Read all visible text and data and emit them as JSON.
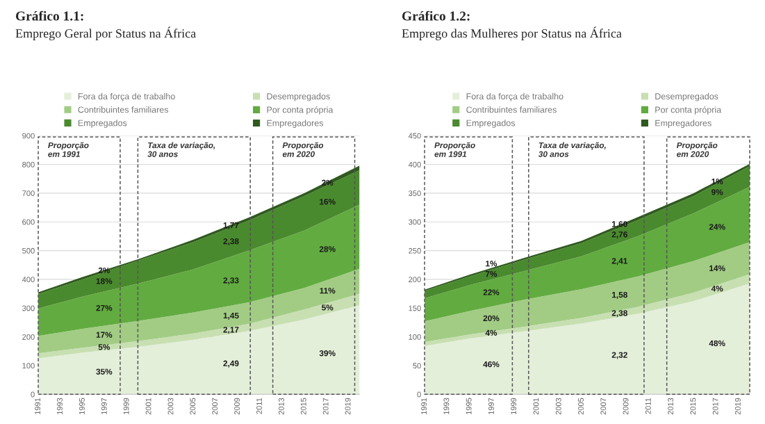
{
  "chart_data": [
    {
      "type": "area",
      "title": "Gráfico 1.1:",
      "subtitle": "Emprego Geral por Status na África",
      "stacked": true,
      "legend": "top",
      "grid": "y",
      "x": [
        1991,
        1995,
        2000,
        2005,
        2010,
        2015,
        2020
      ],
      "xlim": [
        1991,
        2020
      ],
      "xticks": [
        1991,
        1993,
        1995,
        1997,
        1999,
        2001,
        2003,
        2005,
        2007,
        2009,
        2011,
        2013,
        2015,
        2017,
        2019
      ],
      "ylim": [
        0,
        900
      ],
      "yticks": [
        0,
        100,
        200,
        300,
        400,
        500,
        600,
        700,
        800,
        900
      ],
      "series": [
        {
          "name": "Fora da força de trabalho",
          "color": "#e4efda",
          "values": [
            125,
            145,
            165,
            190,
            220,
            260,
            310
          ]
        },
        {
          "name": "Desempregados",
          "color": "#c8dfb2",
          "values": [
            18,
            17,
            20,
            22,
            25,
            35,
            40
          ]
        },
        {
          "name": "Contribuintes familiares",
          "color": "#a2cc84",
          "values": [
            60,
            66,
            70,
            73,
            75,
            75,
            87
          ]
        },
        {
          "name": "Por conta própria",
          "color": "#62ab40",
          "values": [
            96,
            112,
            130,
            150,
            180,
            200,
            223
          ]
        },
        {
          "name": "Empregados",
          "color": "#4a8a2e",
          "values": [
            50,
            60,
            80,
            95,
            105,
            120,
            120
          ]
        },
        {
          "name": "Empregadores",
          "color": "#2f5a1e",
          "values": [
            6,
            8,
            5,
            8,
            10,
            10,
            16
          ]
        }
      ],
      "annotations": [
        "Proporção\nem 1991",
        "Taxa de variação,\n30 anos",
        "Proporção\nem 2020",
        "2%",
        "18%",
        "27%",
        "17%",
        "5%",
        "35%",
        "1,77",
        "2,38",
        "2,33",
        "1,45",
        "2,17",
        "2,49",
        "2%",
        "16%",
        "28%",
        "11%",
        "5%",
        "39%"
      ]
    },
    {
      "type": "area",
      "title": "Gráfico 1.2:",
      "subtitle": "Emprego das Mulheres por Status na África",
      "stacked": true,
      "legend": "top",
      "grid": "y",
      "x": [
        1991,
        1995,
        2000,
        2005,
        2010,
        2015,
        2020
      ],
      "xlim": [
        1991,
        2020
      ],
      "xticks": [
        1991,
        1993,
        1995,
        1997,
        1999,
        2001,
        2003,
        2005,
        2007,
        2009,
        2011,
        2013,
        2015,
        2017,
        2019
      ],
      "ylim": [
        0,
        450
      ],
      "yticks": [
        0,
        50,
        100,
        150,
        200,
        250,
        300,
        350,
        400,
        450
      ],
      "series": [
        {
          "name": "Fora da força de trabalho",
          "color": "#e4efda",
          "values": [
            84,
            97,
            110,
            123,
            140,
            162,
            193
          ]
        },
        {
          "name": "Desempregados",
          "color": "#c8dfb2",
          "values": [
            7,
            7,
            8,
            10,
            12,
            15,
            16
          ]
        },
        {
          "name": "Contribuintes familiares",
          "color": "#a2cc84",
          "values": [
            36,
            41,
            47,
            50,
            53,
            55,
            56
          ]
        },
        {
          "name": "Por conta própria",
          "color": "#62ab40",
          "values": [
            40,
            45,
            50,
            57,
            70,
            83,
            96
          ]
        },
        {
          "name": "Empregados",
          "color": "#4a8a2e",
          "values": [
            13,
            15,
            20,
            23,
            28,
            30,
            36
          ]
        },
        {
          "name": "Empregadores",
          "color": "#2f5a1e",
          "values": [
            2,
            3,
            3,
            4,
            5,
            5,
            4
          ]
        }
      ],
      "annotations": [
        "Proporção\nem 1991",
        "Taxa de variação,\n30 anos",
        "Proporção\nem 2020",
        "1%",
        "7%",
        "22%",
        "20%",
        "4%",
        "46%",
        "1,60",
        "2,76",
        "2,41",
        "1,58",
        "2,38",
        "2,32",
        "1%",
        "9%",
        "24%",
        "14%",
        "4%",
        "48%"
      ]
    }
  ]
}
